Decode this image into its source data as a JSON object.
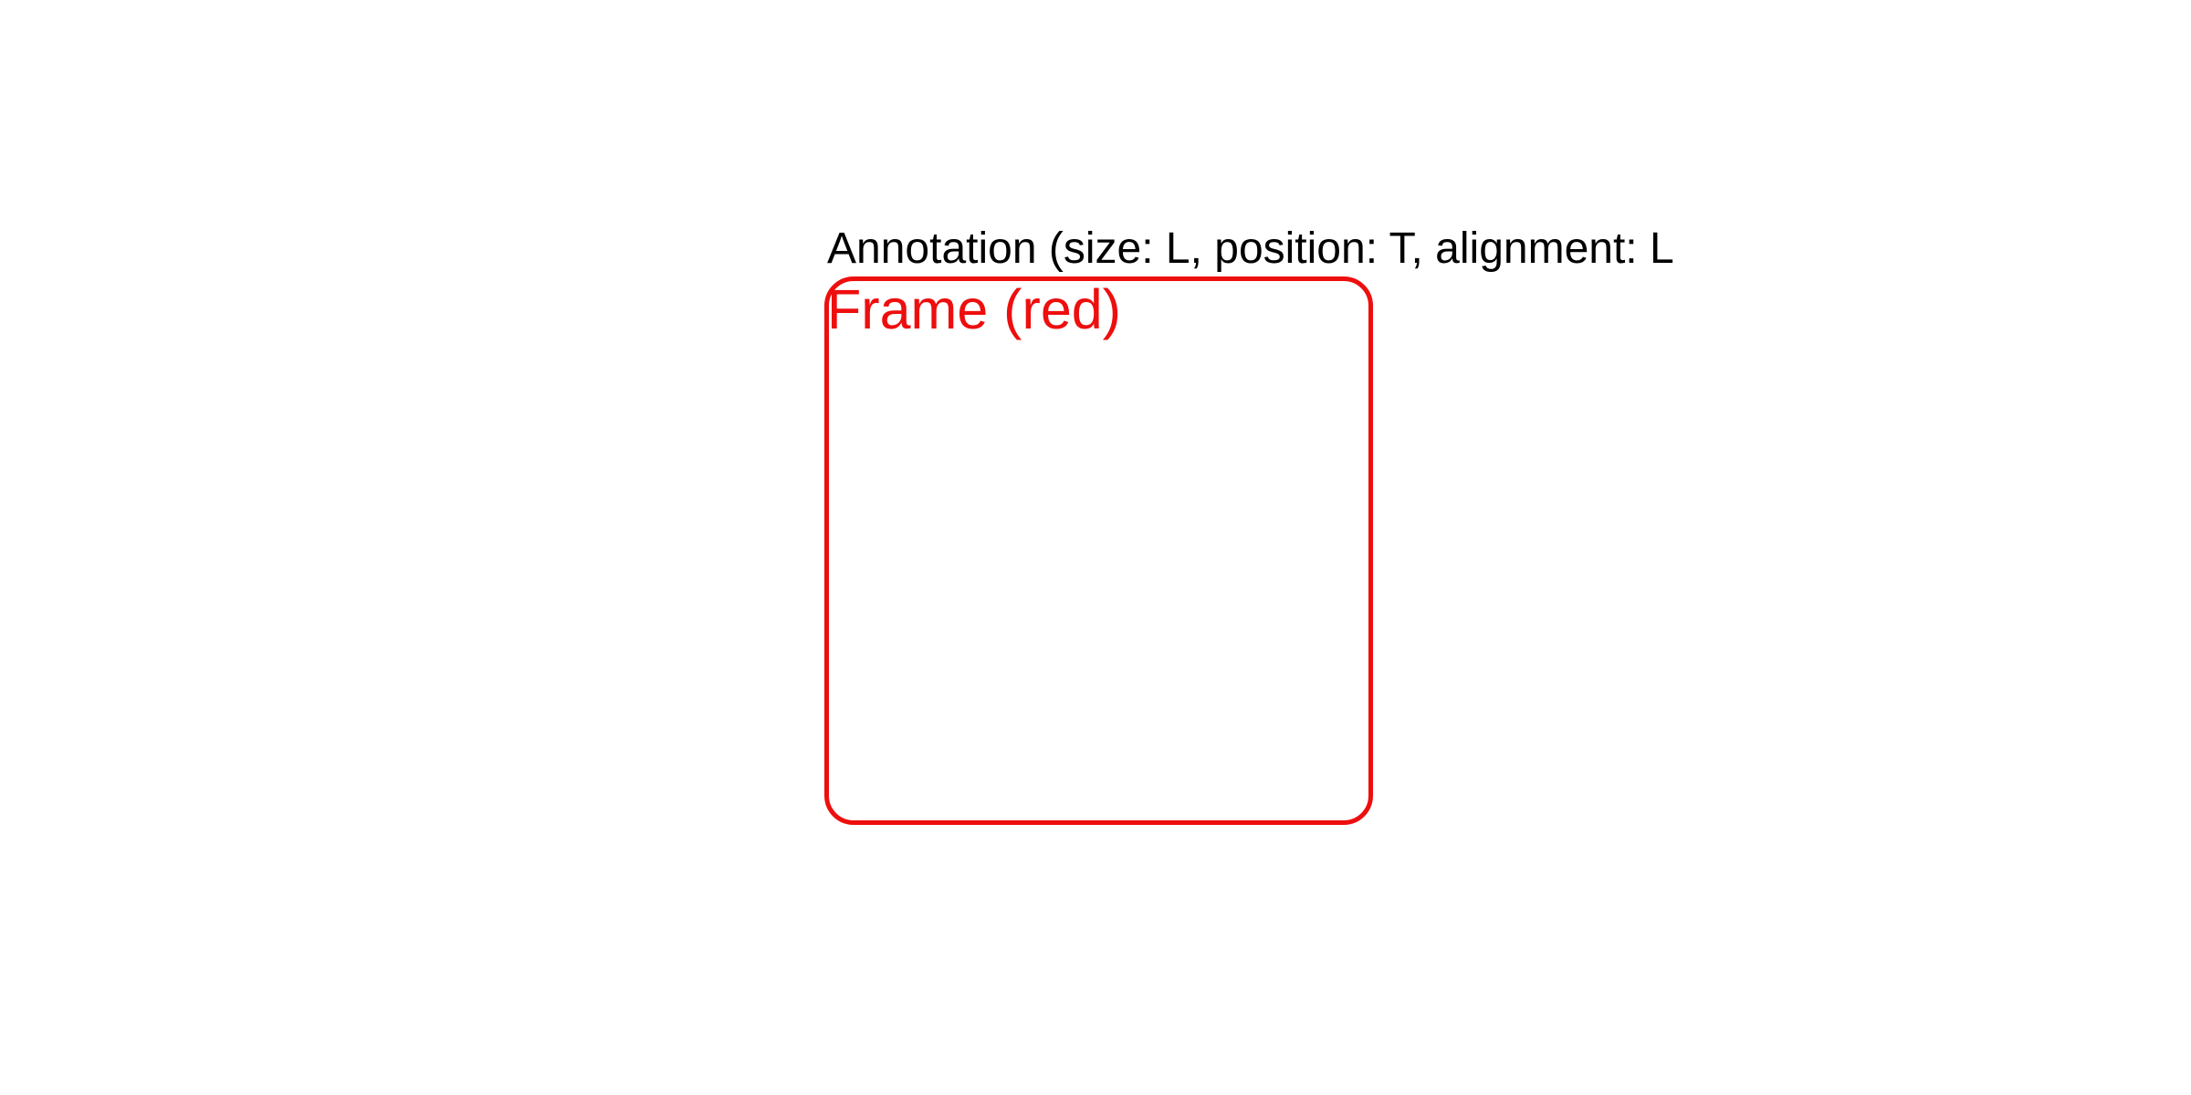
{
  "annotation": {
    "text": "Annotation (size: L, position: T, alignment: L"
  },
  "frame": {
    "label": "Frame (red)",
    "color": "#ee0e0e"
  }
}
